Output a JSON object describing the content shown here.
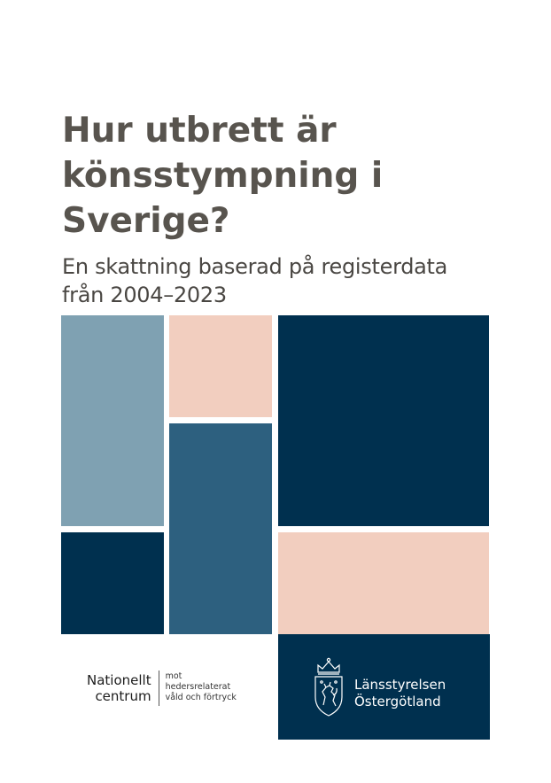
{
  "cover": {
    "title_lines": [
      "Hur utbrett är",
      "könsstympning i",
      "Sverige?"
    ],
    "subtitle_lines": [
      "En skattning baserad på registerdata",
      "från 2004–2023"
    ]
  },
  "palette": {
    "light_blue": "#7fa1b2",
    "navy": "#00304f",
    "peach": "#f2cebf",
    "mid_blue": "#2d607f"
  },
  "logos": {
    "nationellt_centrum": {
      "name_lines": [
        "Nationellt",
        "centrum"
      ],
      "desc_lines": [
        "mot",
        "hedersrelaterat",
        "våld och förtryck"
      ]
    },
    "lansstyrelsen": {
      "icon": "coat-of-arms-icon",
      "name_lines": [
        "Länsstyrelsen",
        "Östergötland"
      ]
    }
  }
}
